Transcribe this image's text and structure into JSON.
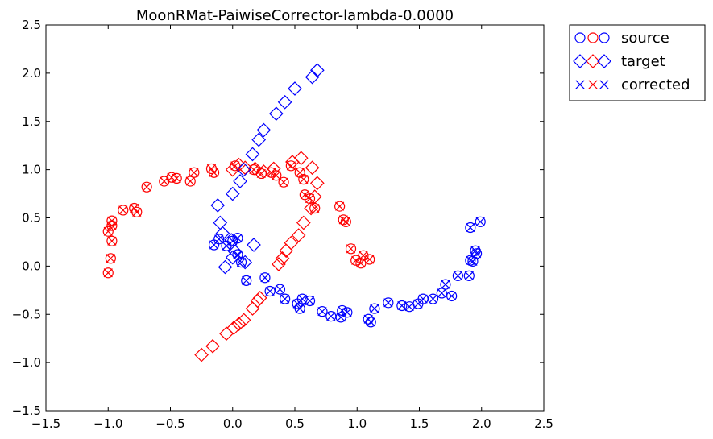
{
  "chart_data": {
    "type": "scatter",
    "title": "MoonRMat-PaiwiseCorrector-lambda-0.0000",
    "xlabel": "",
    "ylabel": "",
    "xlim": [
      -1.5,
      2.5
    ],
    "ylim": [
      -1.5,
      2.5
    ],
    "xticks": [
      -1.5,
      -1.0,
      -0.5,
      0.0,
      0.5,
      1.0,
      1.5,
      2.0,
      2.5
    ],
    "yticks": [
      -1.5,
      -1.0,
      -0.5,
      0.0,
      0.5,
      1.0,
      1.5,
      2.0,
      2.5
    ],
    "xtick_labels": [
      "−1.5",
      "−1.0",
      "−0.5",
      "0.0",
      "0.5",
      "1.0",
      "1.5",
      "2.0",
      "2.5"
    ],
    "ytick_labels": [
      "−1.5",
      "−1.0",
      "−0.5",
      "0.0",
      "0.5",
      "1.0",
      "1.5",
      "2.0",
      "2.5"
    ],
    "grid": false,
    "legend_position": "outside-top-right",
    "colors": {
      "red": "#ff0000",
      "blue": "#0000ff"
    },
    "series": [
      {
        "name": "source",
        "marker": "circle",
        "red": [
          [
            -1.0,
            -0.07
          ],
          [
            -0.98,
            0.08
          ],
          [
            -0.97,
            0.26
          ],
          [
            -1.0,
            0.36
          ],
          [
            -0.97,
            0.42
          ],
          [
            -0.97,
            0.47
          ],
          [
            -0.88,
            0.58
          ],
          [
            -0.79,
            0.6
          ],
          [
            -0.77,
            0.56
          ],
          [
            -0.69,
            0.82
          ],
          [
            -0.55,
            0.88
          ],
          [
            -0.49,
            0.92
          ],
          [
            -0.45,
            0.91
          ],
          [
            -0.34,
            0.88
          ],
          [
            -0.31,
            0.97
          ],
          [
            -0.17,
            1.01
          ],
          [
            -0.15,
            0.97
          ],
          [
            0.02,
            1.04
          ],
          [
            0.17,
            1.0
          ],
          [
            0.23,
            0.96
          ],
          [
            0.31,
            0.97
          ],
          [
            0.35,
            0.94
          ],
          [
            0.41,
            0.87
          ],
          [
            0.47,
            1.04
          ],
          [
            0.54,
            0.97
          ],
          [
            0.57,
            0.9
          ],
          [
            0.58,
            0.74
          ],
          [
            0.62,
            0.7
          ],
          [
            0.66,
            0.6
          ],
          [
            0.86,
            0.62
          ],
          [
            0.89,
            0.48
          ],
          [
            0.91,
            0.46
          ],
          [
            0.95,
            0.18
          ],
          [
            0.99,
            0.06
          ],
          [
            1.03,
            0.03
          ],
          [
            1.05,
            0.11
          ],
          [
            1.1,
            0.07
          ]
        ],
        "blue": [
          [
            -0.15,
            0.22
          ],
          [
            -0.11,
            0.28
          ],
          [
            -0.05,
            0.21
          ],
          [
            0.0,
            0.26
          ],
          [
            0.04,
            0.12
          ],
          [
            0.04,
            0.29
          ],
          [
            0.07,
            0.04
          ],
          [
            0.11,
            -0.15
          ],
          [
            0.26,
            -0.12
          ],
          [
            0.3,
            -0.26
          ],
          [
            0.38,
            -0.24
          ],
          [
            0.42,
            -0.34
          ],
          [
            0.52,
            -0.39
          ],
          [
            0.54,
            -0.44
          ],
          [
            0.56,
            -0.34
          ],
          [
            0.62,
            -0.36
          ],
          [
            0.72,
            -0.47
          ],
          [
            0.79,
            -0.52
          ],
          [
            0.87,
            -0.53
          ],
          [
            0.88,
            -0.46
          ],
          [
            0.92,
            -0.48
          ],
          [
            1.09,
            -0.55
          ],
          [
            1.11,
            -0.58
          ],
          [
            1.14,
            -0.44
          ],
          [
            1.25,
            -0.38
          ],
          [
            1.36,
            -0.41
          ],
          [
            1.42,
            -0.42
          ],
          [
            1.49,
            -0.39
          ],
          [
            1.53,
            -0.34
          ],
          [
            1.61,
            -0.34
          ],
          [
            1.68,
            -0.28
          ],
          [
            1.71,
            -0.19
          ],
          [
            1.76,
            -0.31
          ],
          [
            1.81,
            -0.1
          ],
          [
            1.9,
            -0.1
          ],
          [
            1.91,
            0.06
          ],
          [
            1.93,
            0.05
          ],
          [
            1.95,
            0.16
          ],
          [
            1.96,
            0.13
          ],
          [
            1.91,
            0.4
          ],
          [
            1.99,
            0.46
          ]
        ]
      },
      {
        "name": "target",
        "marker": "diamond",
        "red": [
          [
            -0.25,
            -0.92
          ],
          [
            -0.16,
            -0.83
          ],
          [
            -0.05,
            -0.7
          ],
          [
            0.01,
            -0.64
          ],
          [
            0.05,
            -0.6
          ],
          [
            0.09,
            -0.56
          ],
          [
            0.16,
            -0.44
          ],
          [
            0.2,
            -0.36
          ],
          [
            0.22,
            -0.33
          ],
          [
            0.37,
            0.02
          ],
          [
            0.4,
            0.08
          ],
          [
            0.43,
            0.16
          ],
          [
            0.47,
            0.24
          ],
          [
            0.53,
            0.32
          ],
          [
            0.57,
            0.45
          ],
          [
            0.63,
            0.6
          ],
          [
            0.66,
            0.72
          ],
          [
            0.68,
            0.86
          ],
          [
            0.64,
            1.02
          ],
          [
            0.55,
            1.12
          ],
          [
            0.48,
            1.08
          ],
          [
            0.33,
            1.01
          ],
          [
            0.25,
            0.98
          ],
          [
            0.18,
            1.01
          ],
          [
            0.1,
            1.02
          ],
          [
            0.05,
            1.05
          ],
          [
            0.0,
            1.0
          ]
        ],
        "blue": [
          [
            -0.06,
            -0.01
          ],
          [
            0.0,
            0.09
          ],
          [
            0.02,
            0.15
          ],
          [
            -0.01,
            0.27
          ],
          [
            -0.08,
            0.34
          ],
          [
            -0.1,
            0.45
          ],
          [
            -0.12,
            0.63
          ],
          [
            0.0,
            0.75
          ],
          [
            0.06,
            0.88
          ],
          [
            0.09,
            1.0
          ],
          [
            0.16,
            1.16
          ],
          [
            0.21,
            1.31
          ],
          [
            0.25,
            1.41
          ],
          [
            0.35,
            1.58
          ],
          [
            0.42,
            1.7
          ],
          [
            0.5,
            1.84
          ],
          [
            0.64,
            1.96
          ],
          [
            0.68,
            2.03
          ],
          [
            0.17,
            0.22
          ],
          [
            0.1,
            0.04
          ]
        ]
      },
      {
        "name": "corrected",
        "marker": "x",
        "red": [
          [
            -1.0,
            -0.07
          ],
          [
            -0.98,
            0.08
          ],
          [
            -0.97,
            0.26
          ],
          [
            -1.0,
            0.36
          ],
          [
            -0.97,
            0.42
          ],
          [
            -0.97,
            0.47
          ],
          [
            -0.88,
            0.58
          ],
          [
            -0.79,
            0.6
          ],
          [
            -0.77,
            0.56
          ],
          [
            -0.69,
            0.82
          ],
          [
            -0.55,
            0.88
          ],
          [
            -0.49,
            0.92
          ],
          [
            -0.45,
            0.91
          ],
          [
            -0.34,
            0.88
          ],
          [
            -0.31,
            0.97
          ],
          [
            -0.17,
            1.01
          ],
          [
            -0.15,
            0.97
          ],
          [
            0.02,
            1.04
          ],
          [
            0.17,
            1.0
          ],
          [
            0.23,
            0.96
          ],
          [
            0.31,
            0.97
          ],
          [
            0.35,
            0.94
          ],
          [
            0.41,
            0.87
          ],
          [
            0.47,
            1.04
          ],
          [
            0.54,
            0.97
          ],
          [
            0.57,
            0.9
          ],
          [
            0.58,
            0.74
          ],
          [
            0.62,
            0.7
          ],
          [
            0.66,
            0.6
          ],
          [
            0.86,
            0.62
          ],
          [
            0.89,
            0.48
          ],
          [
            0.91,
            0.46
          ],
          [
            0.95,
            0.18
          ],
          [
            0.99,
            0.06
          ],
          [
            1.03,
            0.03
          ],
          [
            1.05,
            0.11
          ],
          [
            1.1,
            0.07
          ]
        ],
        "blue": [
          [
            -0.15,
            0.22
          ],
          [
            -0.11,
            0.28
          ],
          [
            -0.05,
            0.21
          ],
          [
            0.0,
            0.26
          ],
          [
            0.04,
            0.12
          ],
          [
            0.04,
            0.29
          ],
          [
            0.07,
            0.04
          ],
          [
            0.11,
            -0.15
          ],
          [
            0.26,
            -0.12
          ],
          [
            0.3,
            -0.26
          ],
          [
            0.38,
            -0.24
          ],
          [
            0.42,
            -0.34
          ],
          [
            0.52,
            -0.39
          ],
          [
            0.54,
            -0.44
          ],
          [
            0.56,
            -0.34
          ],
          [
            0.62,
            -0.36
          ],
          [
            0.72,
            -0.47
          ],
          [
            0.79,
            -0.52
          ],
          [
            0.87,
            -0.53
          ],
          [
            0.88,
            -0.46
          ],
          [
            0.92,
            -0.48
          ],
          [
            1.09,
            -0.55
          ],
          [
            1.11,
            -0.58
          ],
          [
            1.14,
            -0.44
          ],
          [
            1.25,
            -0.38
          ],
          [
            1.36,
            -0.41
          ],
          [
            1.42,
            -0.42
          ],
          [
            1.49,
            -0.39
          ],
          [
            1.53,
            -0.34
          ],
          [
            1.61,
            -0.34
          ],
          [
            1.68,
            -0.28
          ],
          [
            1.71,
            -0.19
          ],
          [
            1.76,
            -0.31
          ],
          [
            1.81,
            -0.1
          ],
          [
            1.9,
            -0.1
          ],
          [
            1.91,
            0.06
          ],
          [
            1.93,
            0.05
          ],
          [
            1.95,
            0.16
          ],
          [
            1.96,
            0.13
          ],
          [
            1.91,
            0.4
          ],
          [
            1.99,
            0.46
          ]
        ]
      }
    ]
  }
}
